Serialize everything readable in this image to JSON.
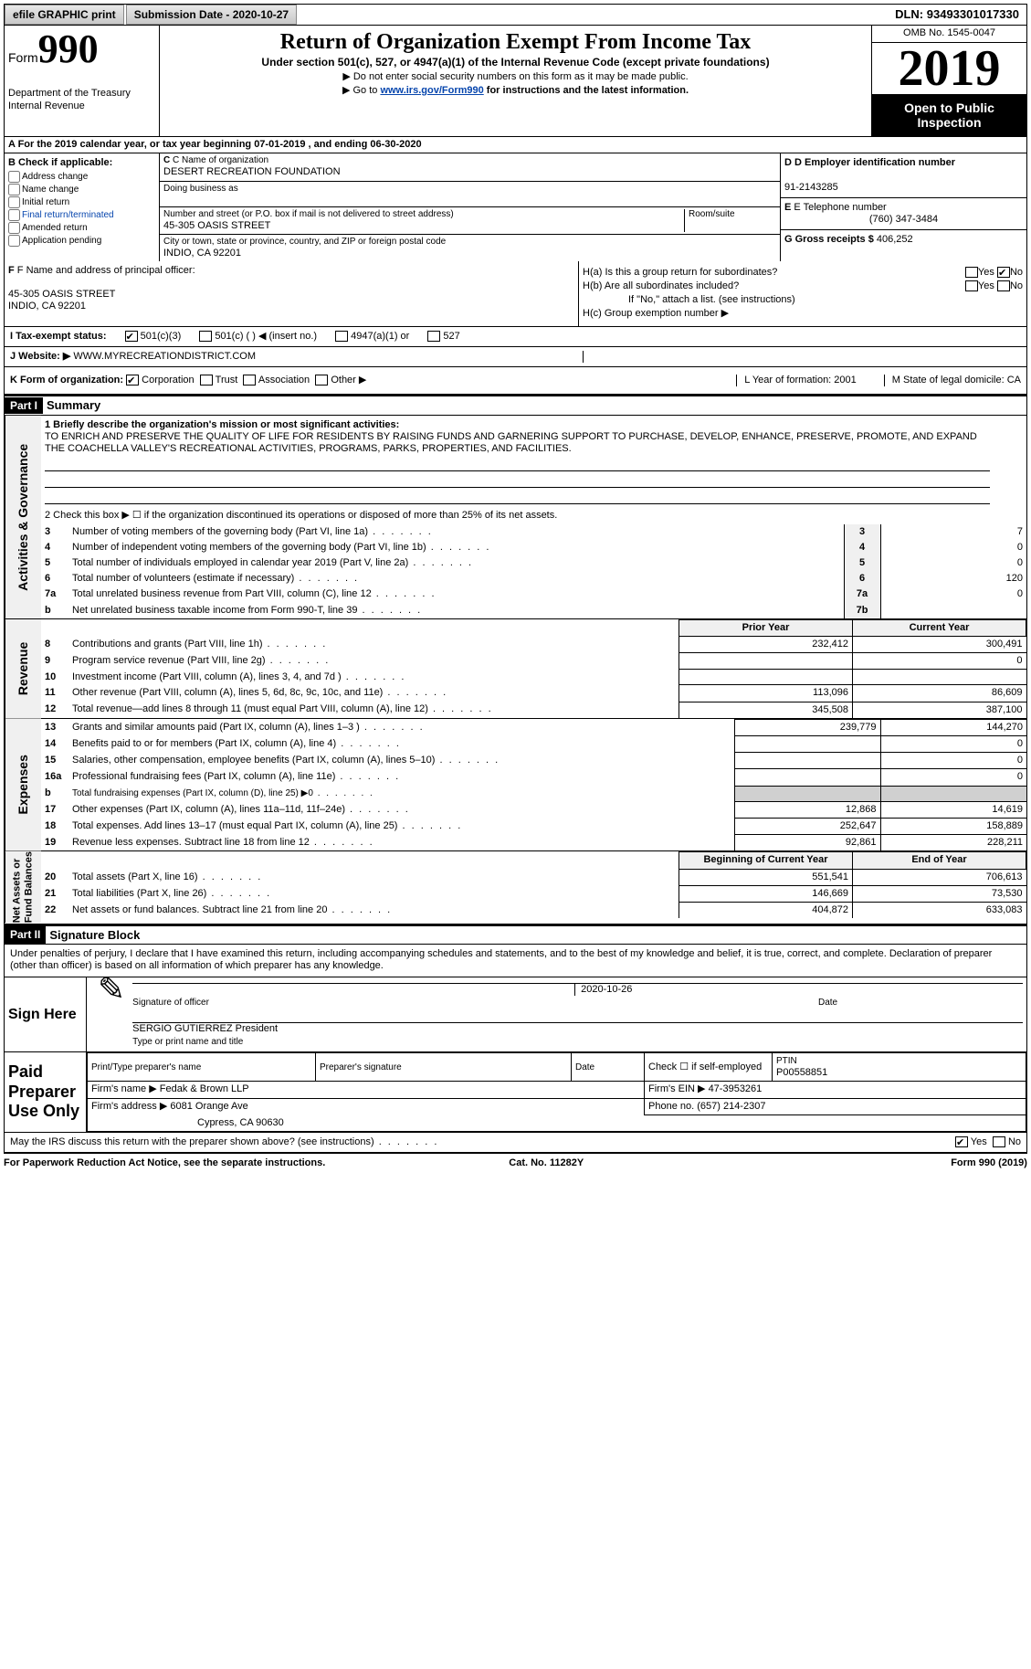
{
  "topbar": {
    "efile": "efile GRAPHIC print",
    "sub_prefix": "Submission Date -",
    "sub_date": "2020-10-27",
    "dln_label": "DLN:",
    "dln": "93493301017330"
  },
  "header": {
    "form": "Form",
    "num": "990",
    "dept": "Department of the Treasury\nInternal Revenue",
    "title": "Return of Organization Exempt From Income Tax",
    "sub": "Under section 501(c), 527, or 4947(a)(1) of the Internal Revenue Code (except private foundations)",
    "note1": "▶ Do not enter social security numbers on this form as it may be made public.",
    "note2_prefix": "▶ Go to ",
    "note2_link": "www.irs.gov/Form990",
    "note2_suffix": " for instructions and the latest information.",
    "omb": "OMB No. 1545-0047",
    "year": "2019",
    "open": "Open to Public Inspection"
  },
  "period": "A For the 2019 calendar year, or tax year beginning 07-01-2019   , and ending 06-30-2020",
  "boxB": {
    "title": "B Check if applicable:",
    "items": [
      "Address change",
      "Name change",
      "Initial return",
      "Final return/terminated",
      "Amended return",
      "Application pending"
    ]
  },
  "boxC": {
    "name_label": "C Name of organization",
    "name": "DESERT RECREATION FOUNDATION",
    "dba": "Doing business as",
    "addr_label": "Number and street (or P.O. box if mail is not delivered to street address)",
    "room": "Room/suite",
    "addr": "45-305 OASIS STREET",
    "city_label": "City or town, state or province, country, and ZIP or foreign postal code",
    "city": "INDIO, CA  92201"
  },
  "boxD": {
    "label": "D Employer identification number",
    "val": "91-2143285"
  },
  "boxE": {
    "label": "E Telephone number",
    "val": "(760) 347-3484"
  },
  "boxG": {
    "label": "G Gross receipts $",
    "val": "406,252"
  },
  "boxF": {
    "label": "F Name and address of principal officer:",
    "addr1": "45-305 OASIS STREET",
    "addr2": "INDIO, CA  92201"
  },
  "boxH": {
    "ha": "H(a)  Is this a group return for subordinates?",
    "hb": "H(b)  Are all subordinates included?",
    "note": "If \"No,\" attach a list. (see instructions)",
    "hc": "H(c)  Group exemption number ▶",
    "yes": "Yes",
    "no": "No"
  },
  "rowI": {
    "label": "I   Tax-exempt status:",
    "opts": [
      "501(c)(3)",
      "501(c) (  ) ◀ (insert no.)",
      "4947(a)(1) or",
      "527"
    ]
  },
  "rowJ": {
    "label": "J   Website: ▶",
    "val": "WWW.MYRECREATIONDISTRICT.COM"
  },
  "rowK": {
    "label": "K Form of organization:",
    "opts": [
      "Corporation",
      "Trust",
      "Association",
      "Other ▶"
    ],
    "L": "L Year of formation: 2001",
    "M": "M State of legal domicile: CA"
  },
  "part1": {
    "label": "Part I",
    "title": "Summary",
    "line1": "1   Briefly describe the organization's mission or most significant activities:",
    "mission": "TO ENRICH AND PRESERVE THE QUALITY OF LIFE FOR RESIDENTS BY RAISING FUNDS AND GARNERING SUPPORT TO PURCHASE, DEVELOP, ENHANCE, PRESERVE, PROMOTE, AND EXPAND THE COACHELLA VALLEY'S RECREATIONAL ACTIVITIES, PROGRAMS, PARKS, PROPERTIES, AND FACILITIES.",
    "line2": "2   Check this box ▶ ☐  if the organization discontinued its operations or disposed of more than 25% of its net assets.",
    "gov_rows": [
      {
        "n": "3",
        "t": "Number of voting members of the governing body (Part VI, line 1a)",
        "box": "3",
        "v": "7"
      },
      {
        "n": "4",
        "t": "Number of independent voting members of the governing body (Part VI, line 1b)",
        "box": "4",
        "v": "0"
      },
      {
        "n": "5",
        "t": "Total number of individuals employed in calendar year 2019 (Part V, line 2a)",
        "box": "5",
        "v": "0"
      },
      {
        "n": "6",
        "t": "Total number of volunteers (estimate if necessary)",
        "box": "6",
        "v": "120"
      },
      {
        "n": "7a",
        "t": "Total unrelated business revenue from Part VIII, column (C), line 12",
        "box": "7a",
        "v": "0"
      },
      {
        "n": "b",
        "t": "Net unrelated business taxable income from Form 990-T, line 39",
        "box": "7b",
        "v": ""
      }
    ],
    "col_headers": {
      "py": "Prior Year",
      "cy": "Current Year"
    },
    "revenue_rows": [
      {
        "n": "8",
        "t": "Contributions and grants (Part VIII, line 1h)",
        "py": "232,412",
        "cy": "300,491"
      },
      {
        "n": "9",
        "t": "Program service revenue (Part VIII, line 2g)",
        "py": "",
        "cy": "0"
      },
      {
        "n": "10",
        "t": "Investment income (Part VIII, column (A), lines 3, 4, and 7d )",
        "py": "",
        "cy": ""
      },
      {
        "n": "11",
        "t": "Other revenue (Part VIII, column (A), lines 5, 6d, 8c, 9c, 10c, and 11e)",
        "py": "113,096",
        "cy": "86,609"
      },
      {
        "n": "12",
        "t": "Total revenue—add lines 8 through 11 (must equal Part VIII, column (A), line 12)",
        "py": "345,508",
        "cy": "387,100"
      }
    ],
    "expense_rows": [
      {
        "n": "13",
        "t": "Grants and similar amounts paid (Part IX, column (A), lines 1–3 )",
        "py": "239,779",
        "cy": "144,270"
      },
      {
        "n": "14",
        "t": "Benefits paid to or for members (Part IX, column (A), line 4)",
        "py": "",
        "cy": "0"
      },
      {
        "n": "15",
        "t": "Salaries, other compensation, employee benefits (Part IX, column (A), lines 5–10)",
        "py": "",
        "cy": "0"
      },
      {
        "n": "16a",
        "t": "Professional fundraising fees (Part IX, column (A), line 11e)",
        "py": "",
        "cy": "0"
      },
      {
        "n": "b",
        "t": "Total fundraising expenses (Part IX, column (D), line 25) ▶0",
        "py": "shade",
        "cy": "shade"
      },
      {
        "n": "17",
        "t": "Other expenses (Part IX, column (A), lines 11a–11d, 11f–24e)",
        "py": "12,868",
        "cy": "14,619"
      },
      {
        "n": "18",
        "t": "Total expenses. Add lines 13–17 (must equal Part IX, column (A), line 25)",
        "py": "252,647",
        "cy": "158,889"
      },
      {
        "n": "19",
        "t": "Revenue less expenses. Subtract line 18 from line 12",
        "py": "92,861",
        "cy": "228,211"
      }
    ],
    "na_headers": {
      "b": "Beginning of Current Year",
      "e": "End of Year"
    },
    "na_rows": [
      {
        "n": "20",
        "t": "Total assets (Part X, line 16)",
        "b": "551,541",
        "e": "706,613"
      },
      {
        "n": "21",
        "t": "Total liabilities (Part X, line 26)",
        "b": "146,669",
        "e": "73,530"
      },
      {
        "n": "22",
        "t": "Net assets or fund balances. Subtract line 21 from line 20",
        "b": "404,872",
        "e": "633,083"
      }
    ],
    "side_labels": {
      "gov": "Activities & Governance",
      "rev": "Revenue",
      "exp": "Expenses",
      "na": "Net Assets or\nFund Balances"
    }
  },
  "part2": {
    "label": "Part II",
    "title": "Signature Block",
    "decl": "Under penalties of perjury, I declare that I have examined this return, including accompanying schedules and statements, and to the best of my knowledge and belief, it is true, correct, and complete. Declaration of preparer (other than officer) is based on all information of which preparer has any knowledge.",
    "sign_here": "Sign Here",
    "sig_officer": "Signature of officer",
    "sig_date": "2020-10-26",
    "date": "Date",
    "name_title": "SERGIO GUTIERREZ President",
    "name_under": "Type or print name and title",
    "paid": "Paid Preparer Use Only",
    "prep_name_h": "Print/Type preparer's name",
    "prep_sig_h": "Preparer's signature",
    "date_h": "Date",
    "check_self": "Check ☐ if self-employed",
    "ptin_h": "PTIN",
    "ptin": "P00558851",
    "firm_name_l": "Firm's name    ▶",
    "firm_name": "Fedak & Brown LLP",
    "firm_ein_l": "Firm's EIN ▶",
    "firm_ein": "47-3953261",
    "firm_addr_l": "Firm's address ▶",
    "firm_addr1": "6081 Orange Ave",
    "firm_addr2": "Cypress, CA  90630",
    "phone_l": "Phone no.",
    "phone": "(657) 214-2307",
    "may": "May the IRS discuss this return with the preparer shown above? (see instructions)",
    "yes": "Yes",
    "no": "No"
  },
  "footer": {
    "left": "For Paperwork Reduction Act Notice, see the separate instructions.",
    "mid": "Cat. No. 11282Y",
    "right": "Form 990 (2019)"
  },
  "colors": {
    "link": "#0645ad",
    "shade": "#d0d0d0",
    "side_bg": "#f0f0f0"
  }
}
